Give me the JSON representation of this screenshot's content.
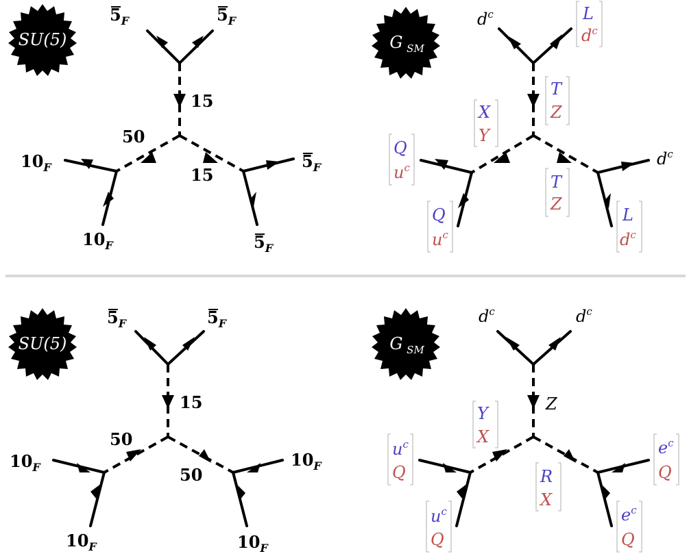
{
  "colors": {
    "upper_label": "#4a3fc4",
    "lower_label": "#c0504d",
    "line": "#000000",
    "divider": "#d8d8d8"
  },
  "top": {
    "left": {
      "badge": "SU(5)",
      "top_left": "5",
      "top_left_sub": "F",
      "top_right": "5",
      "top_right_sub": "F",
      "mid_label": "15",
      "left_prop": "50",
      "right_prop": "15",
      "left_outer": "10",
      "left_outer_sub": "F",
      "left_bottom": "10",
      "left_bottom_sub": "F",
      "right_outer": "5",
      "right_outer_sub": "F",
      "right_bottom": "5",
      "right_bottom_sub": "F"
    },
    "right": {
      "badge": "G",
      "badge_sub": "SM",
      "top_left": "d",
      "top_left_sup": "c",
      "top_right_a": "L",
      "top_right_b": "d",
      "top_right_b_sup": "c",
      "mid_a": "T",
      "mid_b": "Z",
      "left_prop_a": "X",
      "left_prop_b": "Y",
      "right_prop_a": "T",
      "right_prop_b": "Z",
      "left_outer_a": "Q",
      "left_outer_b": "u",
      "left_outer_b_sup": "c",
      "left_bottom_a": "Q",
      "left_bottom_b": "u",
      "left_bottom_b_sup": "c",
      "right_outer": "d",
      "right_outer_sup": "c",
      "right_bottom_a": "L",
      "right_bottom_b": "d",
      "right_bottom_b_sup": "c"
    }
  },
  "bottom": {
    "left": {
      "badge": "SU(5)",
      "top_left": "5",
      "top_left_sub": "F",
      "top_right": "5",
      "top_right_sub": "F",
      "mid_label": "15",
      "left_prop": "50",
      "right_prop": "50",
      "left_outer": "10",
      "left_outer_sub": "F",
      "left_bottom": "10",
      "left_bottom_sub": "F",
      "right_outer": "10",
      "right_outer_sub": "F",
      "right_bottom": "10",
      "right_bottom_sub": "F"
    },
    "right": {
      "badge": "G",
      "badge_sub": "SM",
      "top_left": "d",
      "top_left_sup": "c",
      "top_right": "d",
      "top_right_sup": "c",
      "mid": "Z",
      "left_prop_a": "Y",
      "left_prop_b": "X",
      "right_prop_a": "R",
      "right_prop_b": "X",
      "left_outer_a": "u",
      "left_outer_a_sup": "c",
      "left_outer_b": "Q",
      "left_bottom_a": "u",
      "left_bottom_a_sup": "c",
      "left_bottom_b": "Q",
      "right_outer_a": "e",
      "right_outer_a_sup": "c",
      "right_outer_b": "Q",
      "right_bottom_a": "e",
      "right_bottom_a_sup": "c",
      "right_bottom_b": "Q"
    }
  }
}
